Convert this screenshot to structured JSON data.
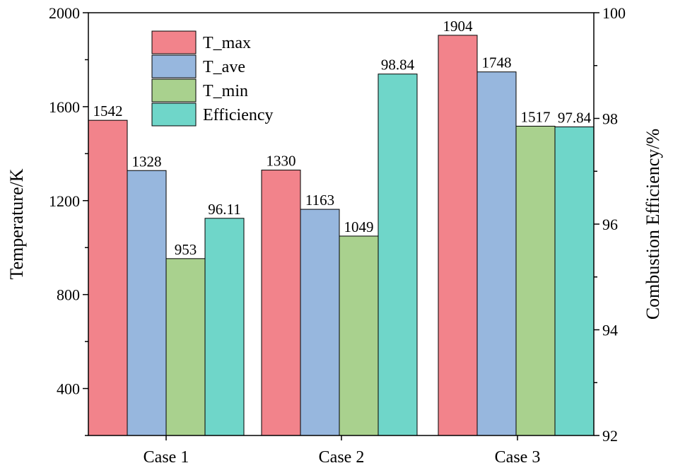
{
  "chart_data": {
    "type": "bar",
    "categories": [
      "Case 1",
      "Case 2",
      "Case 3"
    ],
    "series": [
      {
        "name": "T_max",
        "axis": "left",
        "color": "#f2838b",
        "values": [
          1542,
          1330,
          1904
        ]
      },
      {
        "name": "T_ave",
        "axis": "left",
        "color": "#97b7de",
        "values": [
          1328,
          1163,
          1748
        ]
      },
      {
        "name": "T_min",
        "axis": "left",
        "color": "#a9d18e",
        "values": [
          953,
          1049,
          1517
        ]
      },
      {
        "name": "Efficiency",
        "axis": "right",
        "color": "#6fd6c9",
        "values": [
          96.11,
          98.84,
          97.84
        ]
      }
    ],
    "value_labels": [
      [
        "1542",
        "1330",
        "1904"
      ],
      [
        "1328",
        "1163",
        "1748"
      ],
      [
        "953",
        "1049",
        "1517"
      ],
      [
        "96.11",
        "98.84",
        "97.84"
      ]
    ],
    "ylabel": "Temperature/K",
    "ylabel_right": "Combustion Efficiency/%",
    "ylim": [
      200,
      2000
    ],
    "ylim_right": [
      92,
      100
    ],
    "yticks": [
      "400",
      "800",
      "1200",
      "1600",
      "2000"
    ],
    "yticks_right": [
      "92",
      "94",
      "96",
      "98",
      "100"
    ],
    "legend_position": "top-left",
    "grid": false
  }
}
